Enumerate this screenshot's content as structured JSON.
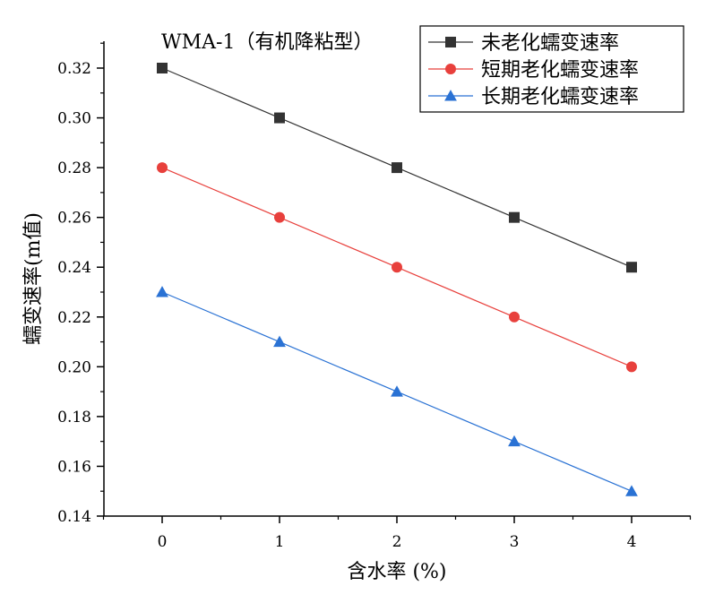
{
  "chart_data": {
    "type": "line",
    "title": "WMA-1（有机降粘型）",
    "xlabel": "含水率 (%)",
    "ylabel": "蠕变速率(m值)",
    "x": [
      0,
      1,
      2,
      3,
      4
    ],
    "x_tick_labels": [
      "0",
      "1",
      "2",
      "3",
      "4"
    ],
    "xlim": [
      -0.5,
      4.5
    ],
    "ylim": [
      0.14,
      0.33
    ],
    "y_ticks": [
      0.14,
      0.16,
      0.18,
      0.2,
      0.22,
      0.24,
      0.26,
      0.28,
      0.3,
      0.32
    ],
    "y_tick_labels": [
      "0.14",
      "0.16",
      "0.18",
      "0.20",
      "0.22",
      "0.24",
      "0.26",
      "0.28",
      "0.30",
      "0.32"
    ],
    "grid": false,
    "legend_position": "top-right",
    "series": [
      {
        "name": "未老化蠕变速率",
        "values": [
          0.32,
          0.3,
          0.28,
          0.26,
          0.24
        ],
        "color": "#333333",
        "marker": "square"
      },
      {
        "name": "短期老化蠕变速率",
        "values": [
          0.28,
          0.26,
          0.24,
          0.22,
          0.2
        ],
        "color": "#e8403c",
        "marker": "circle"
      },
      {
        "name": "长期老化蠕变速率",
        "values": [
          0.23,
          0.21,
          0.19,
          0.17,
          0.15
        ],
        "color": "#2a72d4",
        "marker": "triangle"
      }
    ]
  }
}
